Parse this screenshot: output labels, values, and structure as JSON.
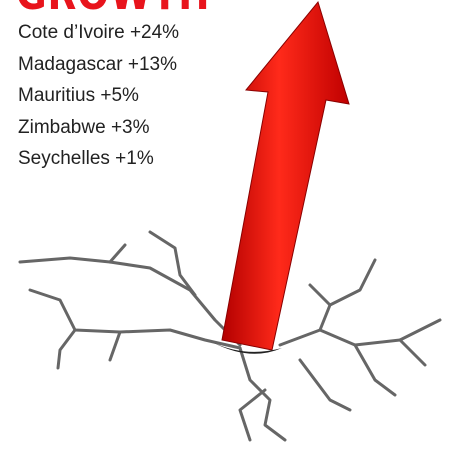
{
  "title": "GROWTH",
  "items": [
    {
      "country": "Cote d’Ivoire",
      "change": "+24%"
    },
    {
      "country": "Madagascar",
      "change": "+13%"
    },
    {
      "country": "Mauritius",
      "change": "+5%"
    },
    {
      "country": "Zimbabwe",
      "change": "+3%"
    },
    {
      "country": "Seychelles",
      "change": "+1%"
    }
  ]
}
